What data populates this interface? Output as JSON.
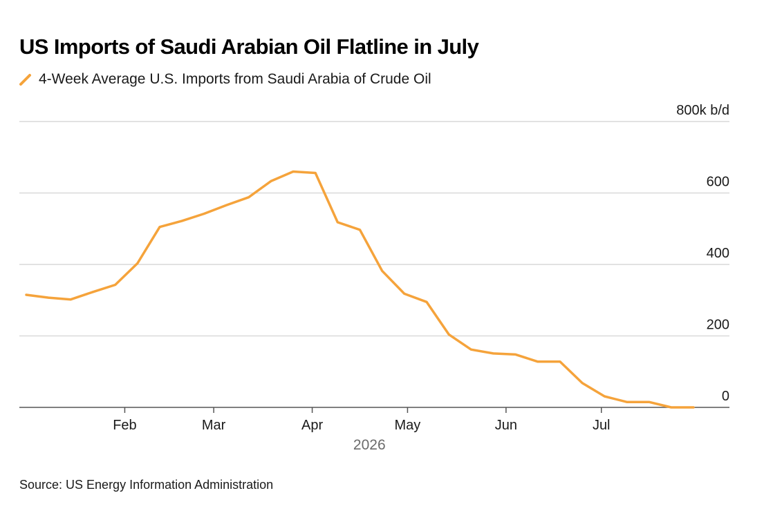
{
  "colors": {
    "series": "#f5a33b",
    "grid": "#d9d9d9",
    "axis": "#555555",
    "text": "#1a1a1a",
    "muted": "#6b6b6b"
  },
  "chart_data": {
    "type": "line",
    "title": "US Imports of Saudi Arabian Oil Flatline in July",
    "series": [
      {
        "name": "4-Week Average U.S. Imports from Saudi Arabia of Crude Oil",
        "points": [
          [
            "2026-01-01",
            315
          ],
          [
            "2026-01-08",
            307
          ],
          [
            "2026-01-15",
            302
          ],
          [
            "2026-01-22",
            323
          ],
          [
            "2026-01-29",
            343
          ],
          [
            "2026-02-05",
            403
          ],
          [
            "2026-02-12",
            505
          ],
          [
            "2026-02-19",
            522
          ],
          [
            "2026-02-26",
            542
          ],
          [
            "2026-03-05",
            566
          ],
          [
            "2026-03-12",
            588
          ],
          [
            "2026-03-19",
            633
          ],
          [
            "2026-03-26",
            660
          ],
          [
            "2026-04-02",
            656
          ],
          [
            "2026-04-09",
            518
          ],
          [
            "2026-04-16",
            497
          ],
          [
            "2026-04-23",
            382
          ],
          [
            "2026-04-30",
            318
          ],
          [
            "2026-05-07",
            295
          ],
          [
            "2026-05-14",
            204
          ],
          [
            "2026-05-21",
            162
          ],
          [
            "2026-05-28",
            151
          ],
          [
            "2026-06-04",
            148
          ],
          [
            "2026-06-11",
            128
          ],
          [
            "2026-06-18",
            128
          ],
          [
            "2026-06-25",
            68
          ],
          [
            "2026-07-02",
            31
          ],
          [
            "2026-07-09",
            15
          ],
          [
            "2026-07-16",
            15
          ],
          [
            "2026-07-23",
            0
          ],
          [
            "2026-07-30",
            0
          ]
        ]
      }
    ],
    "y_axis": {
      "min": 0,
      "max": 800,
      "ticks": [
        0,
        200,
        400,
        600,
        800
      ],
      "tick_labels": [
        "0",
        "200",
        "400",
        "600",
        "800k b/d"
      ],
      "position": "right"
    },
    "x_axis": {
      "min": "2026-01-01",
      "max": "2026-08-04",
      "ticks": [
        {
          "date": "2026-02-01",
          "label": "Feb"
        },
        {
          "date": "2026-03-01",
          "label": "Mar"
        },
        {
          "date": "2026-04-01",
          "label": "Apr"
        },
        {
          "date": "2026-05-01",
          "label": "May"
        },
        {
          "date": "2026-06-01",
          "label": "Jun"
        },
        {
          "date": "2026-07-01",
          "label": "Jul"
        }
      ],
      "year_label": "2026"
    },
    "grid": true,
    "legend_position": "top-left"
  },
  "source": "Source: US Energy Information Administration"
}
